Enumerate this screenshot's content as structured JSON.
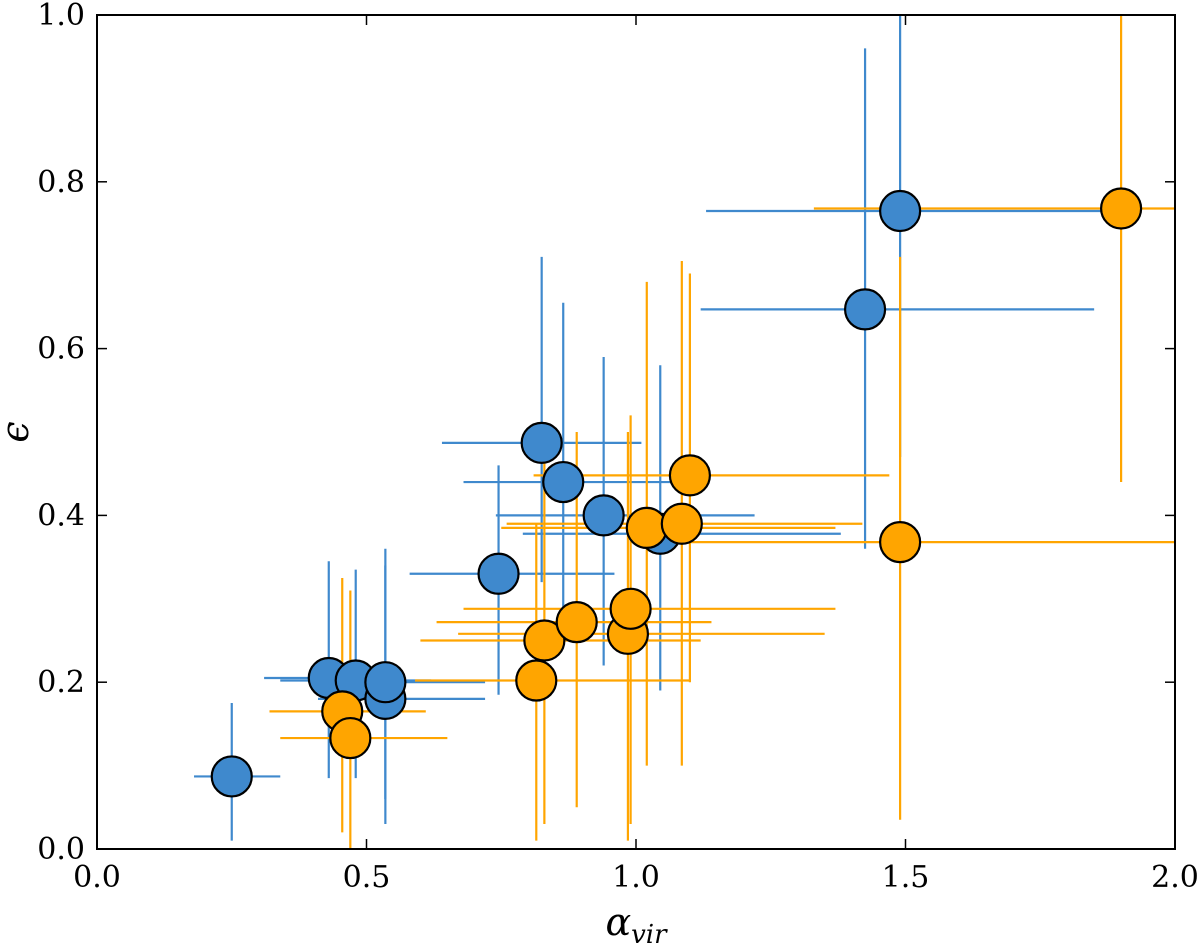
{
  "chart_data": {
    "type": "scatter",
    "title": "",
    "xlabel": "α",
    "xlabel_sub": "vir",
    "ylabel": "ϵ",
    "xlim": [
      0.0,
      2.0
    ],
    "ylim": [
      0.0,
      1.0
    ],
    "x_ticks": [
      0.0,
      0.5,
      1.0,
      1.5,
      2.0
    ],
    "x_tick_labels": [
      "0.0",
      "0.5",
      "1.0",
      "1.5",
      "2.0"
    ],
    "y_ticks": [
      0.0,
      0.2,
      0.4,
      0.6,
      0.8,
      1.0
    ],
    "y_tick_labels": [
      "0.0",
      "0.2",
      "0.4",
      "0.6",
      "0.8",
      "1.0"
    ],
    "grid": false,
    "legend": "none",
    "series": [
      {
        "name": "blue",
        "color": "#3f89cd",
        "points": [
          {
            "x": 0.25,
            "y": 0.087,
            "xerr": [
              0.18,
              0.34
            ],
            "yerr": [
              0.01,
              0.175
            ]
          },
          {
            "x": 0.43,
            "y": 0.205,
            "xerr": [
              0.31,
              0.57
            ],
            "yerr": [
              0.085,
              0.345
            ]
          },
          {
            "x": 0.48,
            "y": 0.202,
            "xerr": [
              0.34,
              0.62
            ],
            "yerr": [
              0.085,
              0.335
            ]
          },
          {
            "x": 0.535,
            "y": 0.18,
            "xerr": [
              0.41,
              0.72
            ],
            "yerr": [
              0.03,
              0.36
            ]
          },
          {
            "x": 0.535,
            "y": 0.2,
            "xerr": [
              0.41,
              0.72
            ],
            "yerr": [
              0.06,
              0.34
            ]
          },
          {
            "x": 0.745,
            "y": 0.33,
            "xerr": [
              0.58,
              0.96
            ],
            "yerr": [
              0.185,
              0.46
            ]
          },
          {
            "x": 0.825,
            "y": 0.487,
            "xerr": [
              0.64,
              1.01
            ],
            "yerr": [
              0.32,
              0.71
            ]
          },
          {
            "x": 0.865,
            "y": 0.44,
            "xerr": [
              0.68,
              1.09
            ],
            "yerr": [
              0.27,
              0.655
            ]
          },
          {
            "x": 0.94,
            "y": 0.4,
            "xerr": [
              0.74,
              1.22
            ],
            "yerr": [
              0.22,
              0.59
            ]
          },
          {
            "x": 1.045,
            "y": 0.378,
            "xerr": [
              0.79,
              1.38
            ],
            "yerr": [
              0.19,
              0.58
            ]
          },
          {
            "x": 1.425,
            "y": 0.647,
            "xerr": [
              1.12,
              1.85
            ],
            "yerr": [
              0.36,
              0.96
            ]
          },
          {
            "x": 1.49,
            "y": 0.765,
            "xerr": [
              1.13,
              1.88
            ],
            "yerr": [
              0.47,
              1.0
            ]
          }
        ]
      },
      {
        "name": "orange",
        "color": "#ffa500",
        "points": [
          {
            "x": 0.455,
            "y": 0.165,
            "xerr": [
              0.32,
              0.61
            ],
            "yerr": [
              0.02,
              0.325
            ]
          },
          {
            "x": 0.47,
            "y": 0.133,
            "xerr": [
              0.34,
              0.65
            ],
            "yerr": [
              0.0,
              0.31
            ]
          },
          {
            "x": 0.815,
            "y": 0.202,
            "xerr": [
              0.59,
              1.1
            ],
            "yerr": [
              0.01,
              0.39
            ]
          },
          {
            "x": 0.83,
            "y": 0.25,
            "xerr": [
              0.6,
              1.12
            ],
            "yerr": [
              0.03,
              0.48
            ]
          },
          {
            "x": 0.89,
            "y": 0.272,
            "xerr": [
              0.63,
              1.14
            ],
            "yerr": [
              0.05,
              0.5
            ]
          },
          {
            "x": 0.985,
            "y": 0.258,
            "xerr": [
              0.67,
              1.35
            ],
            "yerr": [
              0.01,
              0.5
            ]
          },
          {
            "x": 0.99,
            "y": 0.288,
            "xerr": [
              0.68,
              1.37
            ],
            "yerr": [
              0.03,
              0.52
            ]
          },
          {
            "x": 1.02,
            "y": 0.385,
            "xerr": [
              0.75,
              1.37
            ],
            "yerr": [
              0.1,
              0.68
            ]
          },
          {
            "x": 1.085,
            "y": 0.39,
            "xerr": [
              0.76,
              1.42
            ],
            "yerr": [
              0.1,
              0.705
            ]
          },
          {
            "x": 1.1,
            "y": 0.448,
            "xerr": [
              0.81,
              1.47
            ],
            "yerr": [
              0.2,
              0.69
            ]
          },
          {
            "x": 1.49,
            "y": 0.368,
            "xerr": [
              1.06,
              2.0
            ],
            "yerr": [
              0.035,
              0.71
            ]
          },
          {
            "x": 1.9,
            "y": 0.768,
            "xerr": [
              1.33,
              2.0
            ],
            "yerr": [
              0.44,
              1.0
            ]
          }
        ]
      }
    ]
  }
}
